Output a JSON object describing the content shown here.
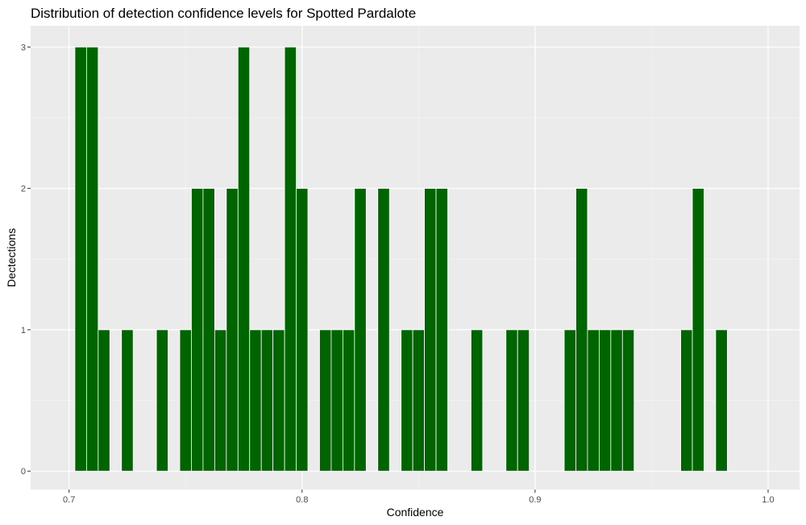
{
  "chart_data": {
    "type": "bar",
    "title": "Distribution of detection confidence levels for Spotted Pardalote",
    "xlabel": "Confidence",
    "ylabel": "Dectections",
    "xlim": [
      0.6835,
      1.0135
    ],
    "ylim": [
      -0.13,
      3.15
    ],
    "x_ticks": [
      0.7,
      0.8,
      0.9,
      1.0
    ],
    "x_tick_labels": [
      "0.7",
      "0.8",
      "0.9",
      "1.0"
    ],
    "y_ticks": [
      0,
      1,
      2,
      3
    ],
    "y_tick_labels": [
      "0",
      "1",
      "2",
      "3"
    ],
    "bin_width": 0.005,
    "grid": true,
    "legend": "none",
    "colors": {
      "bar_fill": "#006400",
      "bar_outline": "#ffffff",
      "panel_background": "#ebebeb",
      "grid_major": "#ffffff",
      "grid_minor": "#f5f5f5"
    },
    "x": [
      0.705,
      0.71,
      0.715,
      0.725,
      0.74,
      0.75,
      0.755,
      0.76,
      0.765,
      0.77,
      0.775,
      0.78,
      0.785,
      0.79,
      0.795,
      0.8,
      0.81,
      0.815,
      0.82,
      0.825,
      0.835,
      0.845,
      0.85,
      0.855,
      0.86,
      0.875,
      0.89,
      0.895,
      0.915,
      0.92,
      0.925,
      0.93,
      0.935,
      0.94,
      0.965,
      0.97,
      0.98
    ],
    "values": [
      3,
      3,
      1,
      1,
      1,
      1,
      2,
      2,
      1,
      2,
      3,
      1,
      1,
      1,
      3,
      2,
      1,
      1,
      1,
      2,
      2,
      1,
      1,
      2,
      2,
      1,
      1,
      1,
      1,
      2,
      1,
      1,
      1,
      1,
      1,
      2,
      1
    ]
  }
}
